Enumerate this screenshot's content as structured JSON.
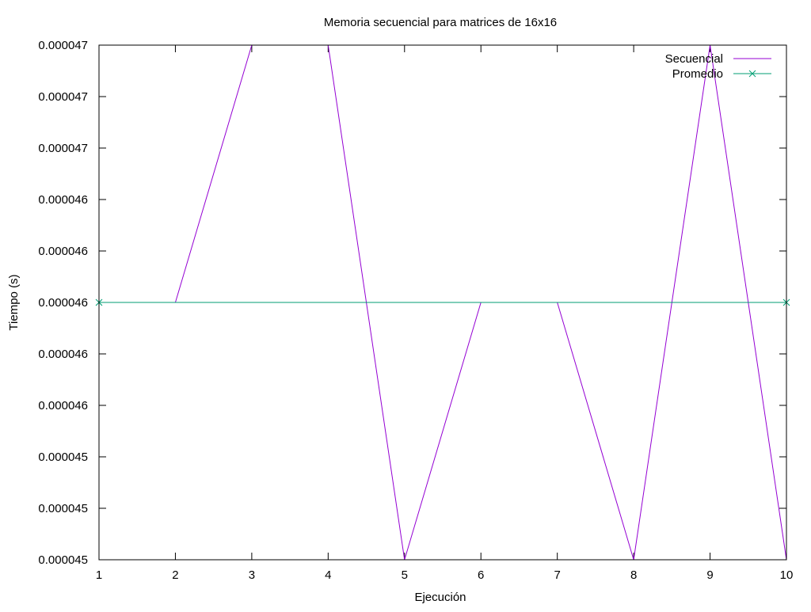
{
  "chart_data": {
    "type": "line",
    "title": "Memoria secuencial para matrices de 16x16",
    "xlabel": "Ejecución",
    "ylabel": "Tiempo (s)",
    "x": [
      1,
      2,
      3,
      4,
      5,
      6,
      7,
      8,
      9,
      10
    ],
    "xlim": [
      1,
      10
    ],
    "ylim": [
      4.5e-05,
      4.7e-05
    ],
    "x_tick_labels": [
      "1",
      "2",
      "3",
      "4",
      "5",
      "6",
      "7",
      "8",
      "9",
      "10"
    ],
    "y_tick_labels": [
      "0.000045",
      "0.000045",
      "0.000045",
      "0.000046",
      "0.000046",
      "0.000046",
      "0.000046",
      "0.000046",
      "0.000047",
      "0.000047",
      "0.000047"
    ],
    "grid": false,
    "legend_position": "top-right",
    "series": [
      {
        "name": "Secuencial",
        "color": "#9400d3",
        "marker": "none",
        "values": [
          4.6e-05,
          4.6e-05,
          4.7e-05,
          4.7e-05,
          4.5e-05,
          4.6e-05,
          4.6e-05,
          4.5e-05,
          4.7e-05,
          4.5e-05
        ]
      },
      {
        "name": "Promedio",
        "color": "#009e73",
        "marker": "x",
        "values": [
          4.6e-05,
          4.6e-05,
          4.6e-05,
          4.6e-05,
          4.6e-05,
          4.6e-05,
          4.6e-05,
          4.6e-05,
          4.6e-05,
          4.6e-05
        ]
      }
    ]
  }
}
